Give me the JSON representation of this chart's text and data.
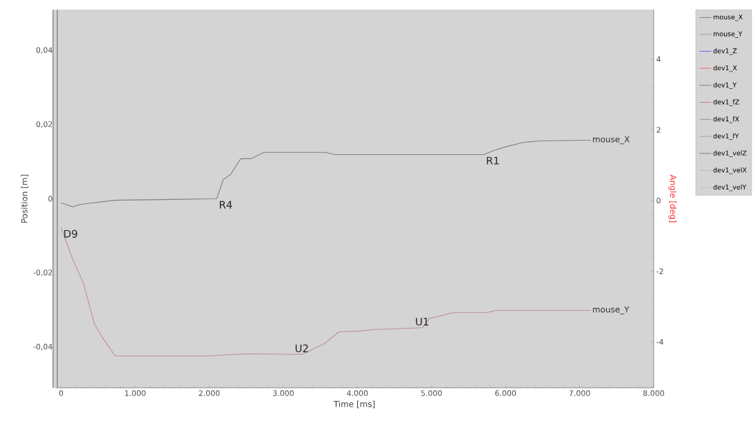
{
  "chart_data": {
    "type": "line",
    "xlabel": "Time [ms]",
    "ylabel": "Position [m]",
    "y2label": "Angle [deg]",
    "xlim": [
      -80,
      8000
    ],
    "ylim": [
      -0.051,
      0.051
    ],
    "y2lim": [
      -5.3,
      5.4
    ],
    "xticks": [
      0,
      {
        "value": 1000,
        "label": "1.000"
      },
      {
        "value": 2000,
        "label": "2.000"
      },
      {
        "value": 3000,
        "label": "3.000"
      },
      {
        "value": 4000,
        "label": "4.000"
      },
      {
        "value": 5000,
        "label": "5.000"
      },
      {
        "value": 6000,
        "label": "6.000"
      },
      {
        "value": 7000,
        "label": "7.000"
      },
      {
        "value": 8000,
        "label": "8.000"
      }
    ],
    "yticks": [
      {
        "value": -0.04,
        "label": "-0,04"
      },
      {
        "value": -0.02,
        "label": "-0,02"
      },
      0,
      {
        "value": 0.02,
        "label": "0,02"
      },
      {
        "value": 0.04,
        "label": "0,04"
      }
    ],
    "y2ticks": [
      -4,
      -2,
      0,
      2,
      4
    ],
    "legend": "right",
    "marker": "none",
    "line_style": "solid",
    "annotations": [
      {
        "text": "D9",
        "x": 0,
        "y": -0.0078
      },
      {
        "text": "R4",
        "x": 2100,
        "y": 0
      },
      {
        "text": "R1",
        "x": 5705,
        "y": 0.0119
      },
      {
        "text": "U2",
        "x": 3250,
        "y": -0.042
      },
      {
        "text": "U1",
        "x": 4875,
        "y": -0.0348
      }
    ],
    "series": [
      {
        "name": "mouse_X",
        "color": "#808080",
        "x": [
          0,
          160,
          270,
          735,
          2100,
          2190,
          2285,
          2425,
          2565,
          2655,
          2740,
          3570,
          3700,
          5705,
          5840,
          6020,
          6240,
          6470,
          7150
        ],
        "values": [
          -0.0011,
          -0.0022,
          -0.0015,
          -0.0004,
          0,
          0.0052,
          0.0065,
          0.0108,
          0.0108,
          0.0117,
          0.0125,
          0.0125,
          0.0119,
          0.0119,
          0.013,
          0.0141,
          0.0152,
          0.0156,
          0.0158
        ]
      },
      {
        "name": "mouse_Y",
        "color": "#c09090",
        "x": [
          0,
          150,
          300,
          450,
          560,
          730,
          2000,
          2500,
          3250,
          3560,
          3750,
          4030,
          4210,
          4875,
          4970,
          5300,
          5745,
          5875,
          7150
        ],
        "values": [
          -0.0078,
          -0.016,
          -0.0227,
          -0.0338,
          -0.0375,
          -0.0424,
          -0.0424,
          -0.0418,
          -0.042,
          -0.039,
          -0.0359,
          -0.0357,
          -0.0353,
          -0.0348,
          -0.0323,
          -0.0307,
          -0.0307,
          -0.0301,
          -0.0301
        ]
      },
      {
        "name": "dev1_Z",
        "color": "#6060ff"
      },
      {
        "name": "dev1_X",
        "color": "#ff6060"
      },
      {
        "name": "dev1_Y",
        "color": "#808080"
      },
      {
        "name": "dev1_fZ",
        "color": "#c08080"
      },
      {
        "name": "dev1_fX",
        "color": "#909090"
      },
      {
        "name": "dev1_fY",
        "color": "#a0a0a0"
      },
      {
        "name": "dev1_velZ",
        "color": "#808080"
      },
      {
        "name": "dev1_velX",
        "color": "#a0d0a0"
      },
      {
        "name": "dev1_velY",
        "color": "#c0c0c0"
      }
    ]
  }
}
